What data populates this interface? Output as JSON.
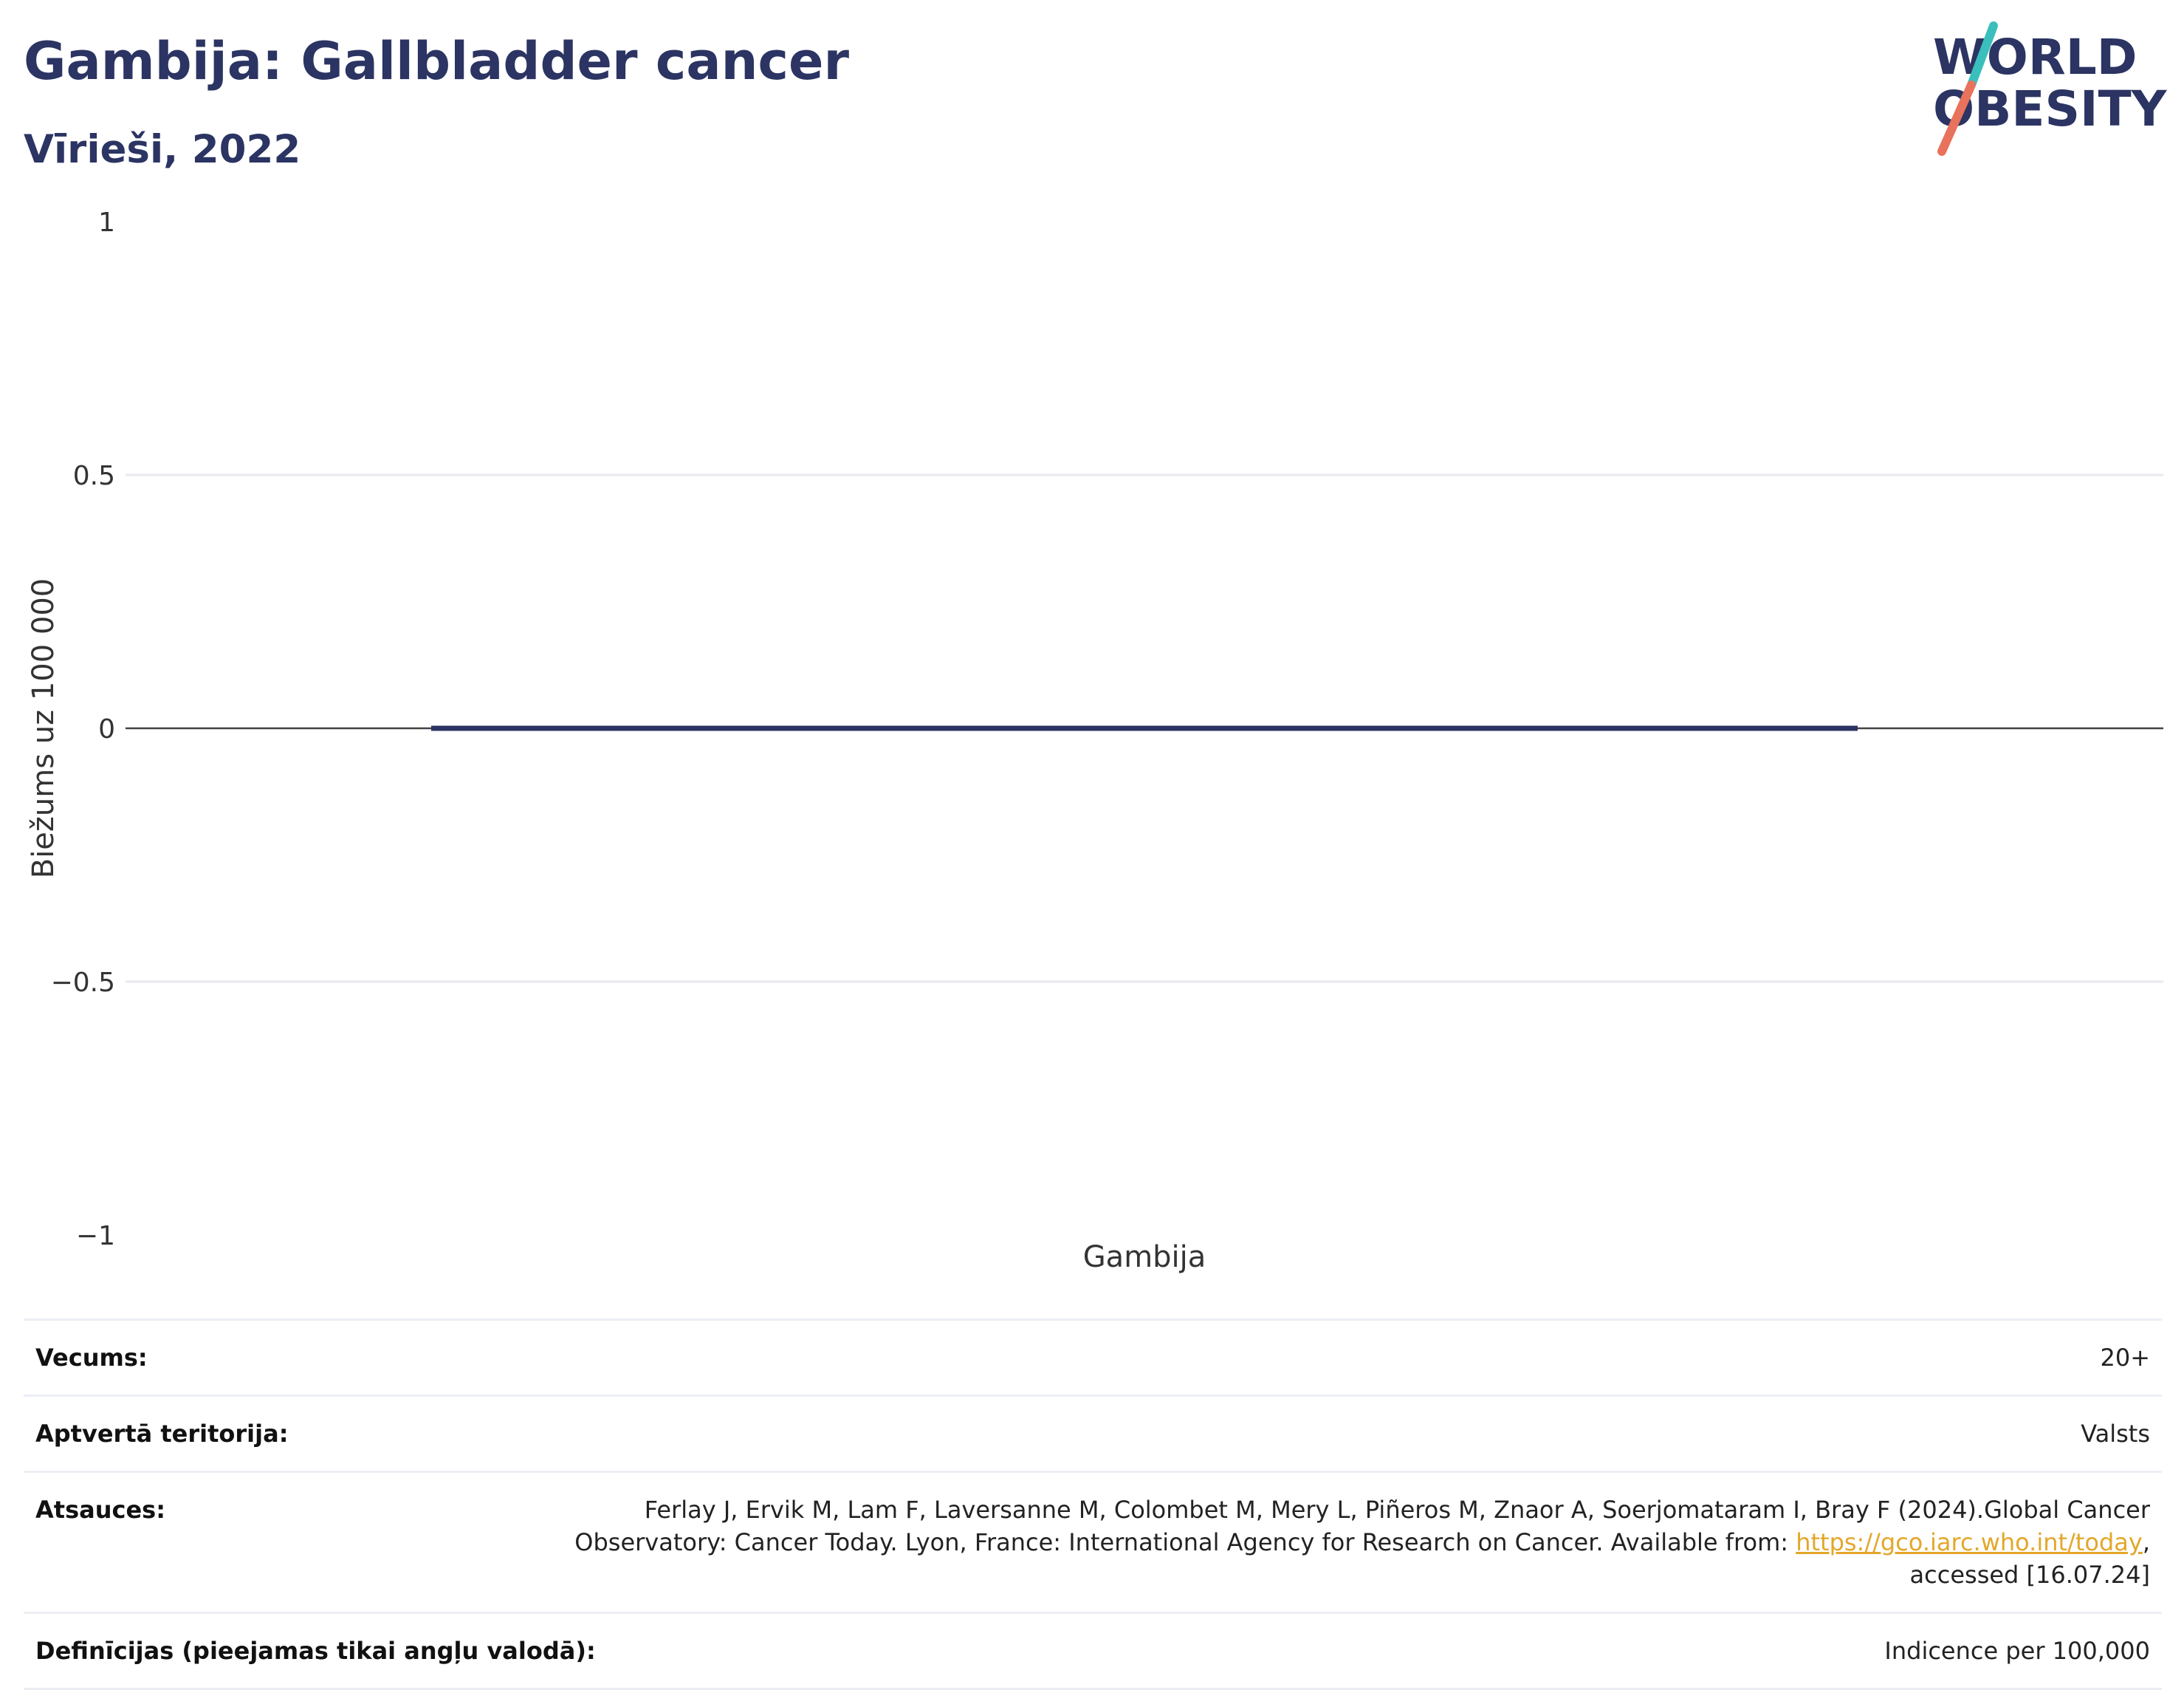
{
  "header": {
    "title": "Gambija: Gallbladder cancer",
    "subtitle": "Vīrieši, 2022"
  },
  "logo": {
    "line1": "WORLD",
    "line2": "OBESITY",
    "colors": {
      "text": "#2b3462",
      "slash_top": "#3bbfbd",
      "slash_bottom": "#e8725c"
    }
  },
  "chart_data": {
    "type": "bar",
    "categories": [
      "Gambija"
    ],
    "values": [
      0
    ],
    "ylabel": "Biežums uz 100 000",
    "xlabel": "",
    "ylim": [
      -1,
      1
    ],
    "yticks": [
      1,
      0.5,
      0,
      -0.5,
      -1
    ],
    "ytick_labels": [
      "1",
      "0.5",
      "0",
      "−0.5",
      "−1"
    ],
    "grid": true,
    "bar_color": "#2b3462"
  },
  "info": {
    "rows": [
      {
        "label": "Vecums:",
        "value": "20+"
      },
      {
        "label": "Aptvertā teritorija:",
        "value": "Valsts"
      },
      {
        "label": "Atsauces:",
        "value_prefix": "Ferlay J, Ervik M, Lam F, Laversanne M, Colombet M, Mery L, Piñeros M, Znaor A, Soerjomataram I, Bray F (2024).Global Cancer Observatory: Cancer Today. Lyon, France: International Agency for Research on Cancer. Available from: ",
        "link": "https://gco.iarc.who.int/today",
        "value_suffix": ", accessed [16.07.24]"
      },
      {
        "label": "Definīcijas (pieejamas tikai angļu valodā):",
        "value": "Indicence per 100,000"
      }
    ]
  }
}
